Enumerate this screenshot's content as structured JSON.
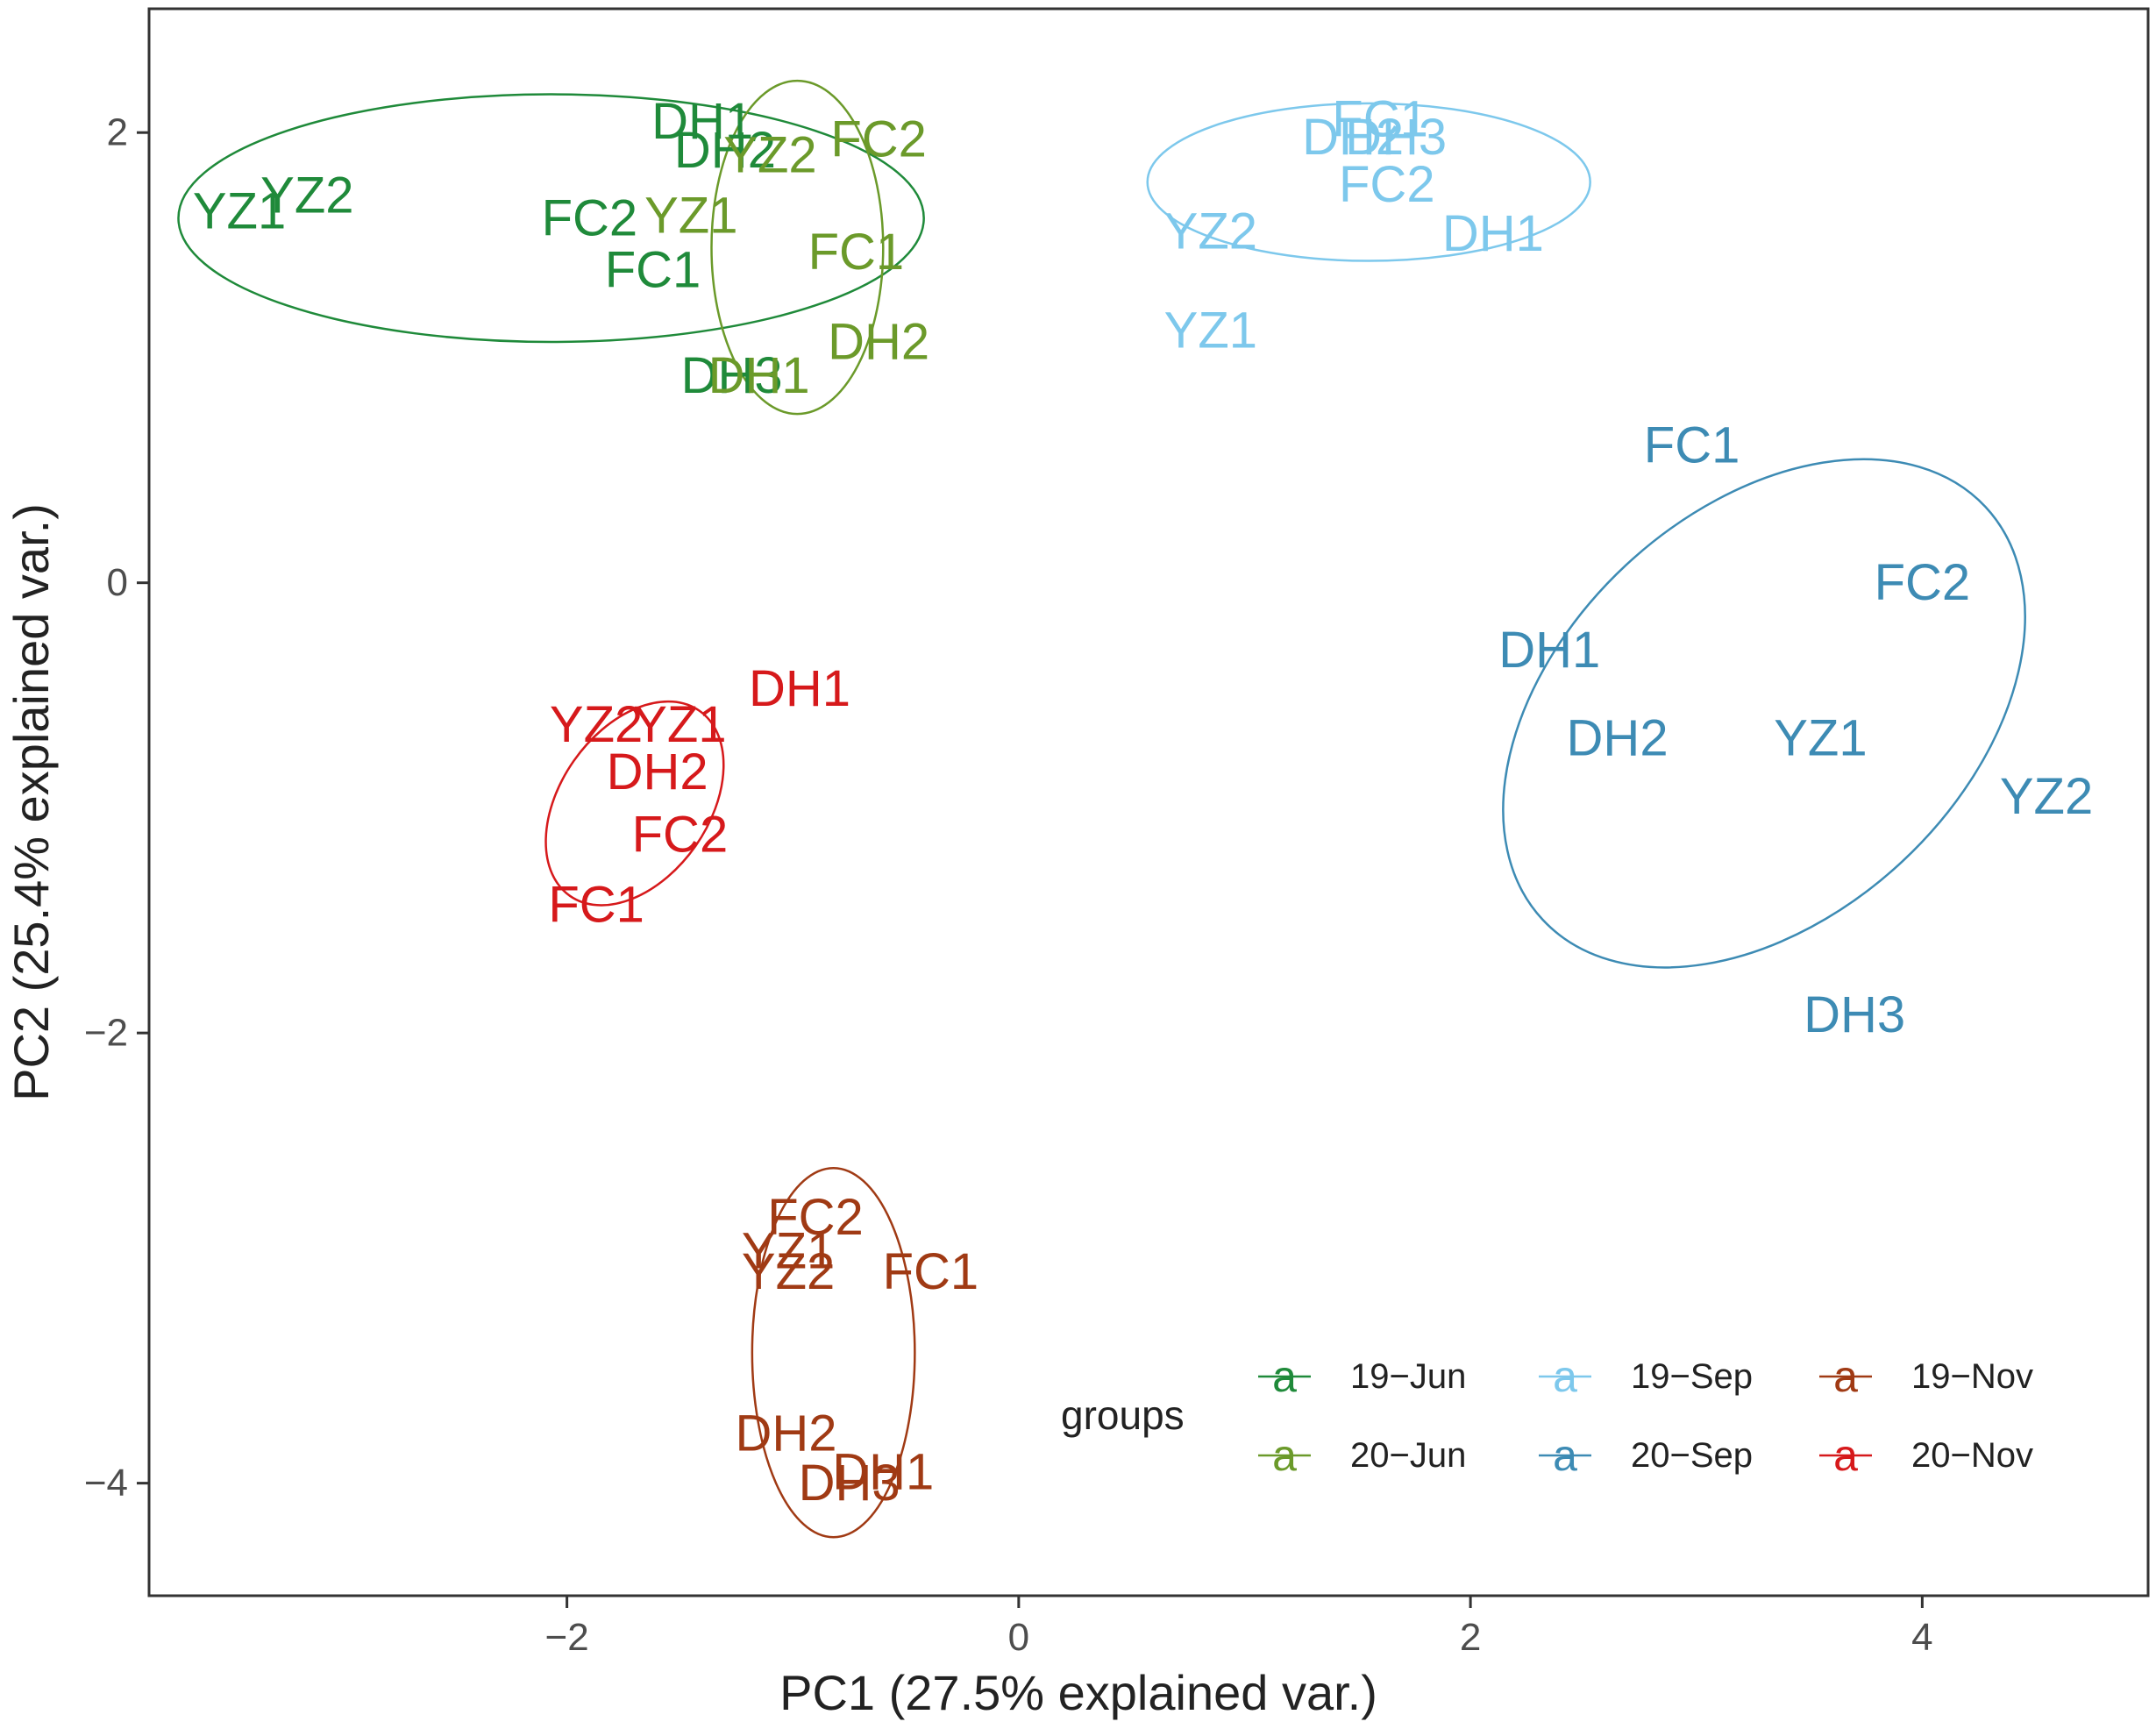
{
  "chart_data": {
    "type": "scatter",
    "xlabel": "PC1 (27.5% explained var.)",
    "ylabel": "PC2 (25.4% explained var.)",
    "xlim": [
      -3.85,
      5.0
    ],
    "ylim": [
      -4.5,
      2.55
    ],
    "xticks": [
      -2,
      0,
      2,
      4
    ],
    "yticks": [
      -4,
      -2,
      0,
      2
    ],
    "xtick_labels": [
      "−2",
      "0",
      "2",
      "4"
    ],
    "ytick_labels": [
      "−4",
      "−2",
      "0",
      "2"
    ],
    "legend_title": "groups",
    "legend_position": "bottom-right",
    "legend_key_char": "a",
    "series": [
      {
        "name": "19-Jun",
        "color": "#1f8a3a",
        "ellipse": {
          "cx": -2.07,
          "cy": 1.62,
          "rx": 1.65,
          "ry": 0.55
        },
        "points": [
          {
            "label": "YZ1",
            "x": -3.45,
            "y": 1.65
          },
          {
            "label": "YZ2",
            "x": -3.15,
            "y": 1.72
          },
          {
            "label": "DH1",
            "x": -1.4,
            "y": 2.05
          },
          {
            "label": "DH2",
            "x": -1.3,
            "y": 1.92
          },
          {
            "label": "FC2",
            "x": -1.9,
            "y": 1.62
          },
          {
            "label": "FC1",
            "x": -1.62,
            "y": 1.39
          },
          {
            "label": "DH3",
            "x": -1.27,
            "y": 0.92
          }
        ]
      },
      {
        "name": "20-Jun",
        "color": "#6b9a2a",
        "ellipse": {
          "cx": -0.98,
          "cy": 1.49,
          "rx": 0.38,
          "ry": 0.74
        },
        "points": [
          {
            "label": "YZ2",
            "x": -1.1,
            "y": 1.9
          },
          {
            "label": "FC2",
            "x": -0.62,
            "y": 1.97
          },
          {
            "label": "YZ1",
            "x": -1.45,
            "y": 1.63
          },
          {
            "label": "FC1",
            "x": -0.72,
            "y": 1.47
          },
          {
            "label": "DH2",
            "x": -0.62,
            "y": 1.07
          },
          {
            "label": "DH1",
            "x": -1.15,
            "y": 0.92
          }
        ]
      },
      {
        "name": "19-Sep",
        "color": "#7dc8ec",
        "ellipse": {
          "cx": 1.55,
          "cy": 1.78,
          "rx": 0.98,
          "ry": 0.35
        },
        "points": [
          {
            "label": "FC1",
            "x": 1.6,
            "y": 2.06
          },
          {
            "label": "DH2",
            "x": 1.48,
            "y": 1.98
          },
          {
            "label": "DH3",
            "x": 1.67,
            "y": 1.98
          },
          {
            "label": "FC2",
            "x": 1.63,
            "y": 1.77
          },
          {
            "label": "YZ2",
            "x": 0.85,
            "y": 1.56
          },
          {
            "label": "DH1",
            "x": 2.1,
            "y": 1.55
          },
          {
            "label": "YZ1",
            "x": 0.85,
            "y": 1.12
          }
        ]
      },
      {
        "name": "20-Sep",
        "color": "#3d8bb4",
        "ellipse": {
          "cx": 3.3,
          "cy": -0.58,
          "rx": 1.34,
          "ry": 0.9,
          "angle": -43
        },
        "points": [
          {
            "label": "FC1",
            "x": 2.98,
            "y": 0.61
          },
          {
            "label": "FC2",
            "x": 4.0,
            "y": 0.0
          },
          {
            "label": "DH1",
            "x": 2.35,
            "y": -0.3
          },
          {
            "label": "DH2",
            "x": 2.65,
            "y": -0.69
          },
          {
            "label": "YZ1",
            "x": 3.55,
            "y": -0.69
          },
          {
            "label": "YZ2",
            "x": 4.55,
            "y": -0.95
          },
          {
            "label": "DH3",
            "x": 3.7,
            "y": -1.92
          }
        ]
      },
      {
        "name": "19-Nov",
        "color": "#a03a14",
        "ellipse": {
          "cx": -0.82,
          "cy": -3.42,
          "rx": 0.36,
          "ry": 0.82
        },
        "points": [
          {
            "label": "FC2",
            "x": -0.9,
            "y": -2.82
          },
          {
            "label": "YZ1",
            "x": -1.02,
            "y": -2.97
          },
          {
            "label": "YZ2",
            "x": -1.02,
            "y": -3.06
          },
          {
            "label": "FC1",
            "x": -0.39,
            "y": -3.06
          },
          {
            "label": "DH2",
            "x": -1.03,
            "y": -3.78
          },
          {
            "label": "DH1",
            "x": -0.6,
            "y": -3.95
          },
          {
            "label": "DH3",
            "x": -0.75,
            "y": -4.0
          }
        ]
      },
      {
        "name": "20-Nov",
        "color": "#d6191b",
        "ellipse": {
          "cx": -1.7,
          "cy": -0.98,
          "rx": 0.5,
          "ry": 0.33,
          "angle": -55
        },
        "points": [
          {
            "label": "DH1",
            "x": -0.97,
            "y": -0.47
          },
          {
            "label": "YZ2",
            "x": -1.87,
            "y": -0.63
          },
          {
            "label": "YZ1",
            "x": -1.5,
            "y": -0.63
          },
          {
            "label": "DH2",
            "x": -1.6,
            "y": -0.84
          },
          {
            "label": "FC2",
            "x": -1.5,
            "y": -1.12
          },
          {
            "label": "FC1",
            "x": -1.87,
            "y": -1.43
          }
        ]
      }
    ]
  }
}
